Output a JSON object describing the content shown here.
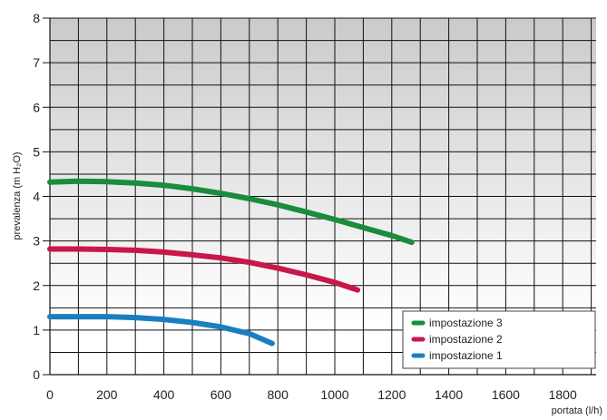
{
  "chart_data": {
    "type": "line",
    "xlabel": "portata (l/h)",
    "ylabel": "prevalenza (m H₂O)",
    "xlim": [
      0,
      1900
    ],
    "ylim": [
      0,
      8
    ],
    "xticks": [
      0,
      200,
      400,
      600,
      800,
      1000,
      1200,
      1400,
      1600,
      1800
    ],
    "yticks": [
      0,
      1,
      2,
      3,
      4,
      5,
      6,
      7,
      8
    ],
    "grid": true,
    "legend_position": "bottom-right",
    "series": [
      {
        "name": "impostazione 3",
        "color": "#1a8c3c",
        "points": [
          [
            0,
            4.32
          ],
          [
            100,
            4.34
          ],
          [
            200,
            4.33
          ],
          [
            300,
            4.3
          ],
          [
            400,
            4.25
          ],
          [
            500,
            4.17
          ],
          [
            600,
            4.07
          ],
          [
            700,
            3.95
          ],
          [
            800,
            3.81
          ],
          [
            900,
            3.65
          ],
          [
            1000,
            3.48
          ],
          [
            1100,
            3.3
          ],
          [
            1200,
            3.12
          ],
          [
            1270,
            2.97
          ]
        ]
      },
      {
        "name": "impostazione 2",
        "color": "#c8174a",
        "points": [
          [
            0,
            2.82
          ],
          [
            100,
            2.82
          ],
          [
            200,
            2.81
          ],
          [
            300,
            2.79
          ],
          [
            400,
            2.75
          ],
          [
            500,
            2.69
          ],
          [
            600,
            2.62
          ],
          [
            700,
            2.52
          ],
          [
            800,
            2.39
          ],
          [
            900,
            2.24
          ],
          [
            1000,
            2.07
          ],
          [
            1080,
            1.9
          ]
        ]
      },
      {
        "name": "impostazione 1",
        "color": "#1b7fbf",
        "points": [
          [
            0,
            1.3
          ],
          [
            100,
            1.3
          ],
          [
            200,
            1.3
          ],
          [
            300,
            1.28
          ],
          [
            400,
            1.24
          ],
          [
            500,
            1.17
          ],
          [
            600,
            1.07
          ],
          [
            700,
            0.92
          ],
          [
            780,
            0.7
          ]
        ]
      }
    ]
  }
}
